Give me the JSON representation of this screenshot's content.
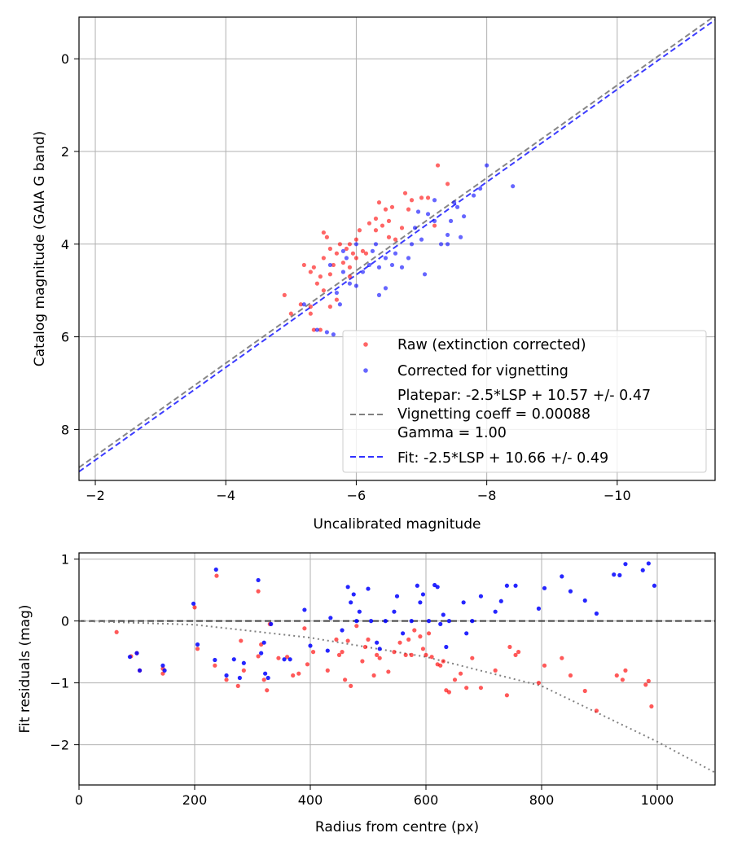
{
  "chart_data": [
    {
      "type": "scatter",
      "xlabel": "Uncalibrated magnitude",
      "ylabel": "Catalog magnitude (GAIA G band)",
      "xlim": [
        -1.75,
        -11.5
      ],
      "ylim": [
        9.1,
        -0.9
      ],
      "x_ticks": [
        -2,
        -4,
        -6,
        -8,
        -10
      ],
      "x_tick_labels": [
        "−2",
        "−4",
        "−6",
        "−8",
        "−10"
      ],
      "y_ticks": [
        0,
        2,
        4,
        6,
        8
      ],
      "y_tick_labels": [
        "0",
        "2",
        "4",
        "6",
        "8"
      ],
      "grid": true,
      "legend_position": "lower-right",
      "series": [
        {
          "name": "Raw (extinction corrected)",
          "kind": "scatter",
          "color": "#ff0000",
          "points": [
            [
              -4.9,
              5.1
            ],
            [
              -5.0,
              5.5
            ],
            [
              -5.15,
              5.3
            ],
            [
              -5.2,
              4.45
            ],
            [
              -5.3,
              5.35
            ],
            [
              -5.3,
              4.6
            ],
            [
              -5.35,
              4.5
            ],
            [
              -5.4,
              4.85
            ],
            [
              -5.35,
              5.85
            ],
            [
              -5.45,
              4.7
            ],
            [
              -5.5,
              3.75
            ],
            [
              -5.55,
              3.85
            ],
            [
              -5.5,
              4.3
            ],
            [
              -5.6,
              4.1
            ],
            [
              -5.7,
              4.2
            ],
            [
              -5.75,
              4.0
            ],
            [
              -5.8,
              4.4
            ],
            [
              -5.85,
              4.1
            ],
            [
              -5.9,
              4.0
            ],
            [
              -5.95,
              4.2
            ],
            [
              -6.0,
              3.9
            ],
            [
              -6.05,
              3.7
            ],
            [
              -6.1,
              4.15
            ],
            [
              -5.65,
              4.45
            ],
            [
              -5.9,
              4.5
            ],
            [
              -5.6,
              5.35
            ],
            [
              -5.7,
              5.2
            ],
            [
              -5.5,
              5.0
            ],
            [
              -6.2,
              3.55
            ],
            [
              -6.3,
              3.45
            ],
            [
              -6.35,
              3.1
            ],
            [
              -6.4,
              3.6
            ],
            [
              -6.45,
              3.25
            ],
            [
              -6.5,
              3.5
            ],
            [
              -6.5,
              3.85
            ],
            [
              -6.55,
              3.2
            ],
            [
              -6.6,
              3.9
            ],
            [
              -6.7,
              3.65
            ],
            [
              -6.75,
              2.9
            ],
            [
              -6.8,
              3.25
            ],
            [
              -6.85,
              3.05
            ],
            [
              -7.0,
              3.0
            ],
            [
              -7.1,
              3.0
            ],
            [
              -7.2,
              3.6
            ],
            [
              -7.25,
              2.3
            ],
            [
              -7.4,
              2.7
            ],
            [
              -6.3,
              3.7
            ],
            [
              -6.15,
              4.2
            ],
            [
              -5.9,
              4.7
            ],
            [
              -5.3,
              5.5
            ],
            [
              -5.45,
              5.85
            ],
            [
              -6.0,
              4.3
            ],
            [
              -5.6,
              4.65
            ]
          ]
        },
        {
          "name": "Corrected for vignetting",
          "kind": "scatter",
          "color": "#0000ff",
          "points": [
            [
              -5.2,
              5.3
            ],
            [
              -5.4,
              5.85
            ],
            [
              -5.55,
              5.9
            ],
            [
              -5.65,
              5.95
            ],
            [
              -5.7,
              5.05
            ],
            [
              -5.75,
              5.3
            ],
            [
              -5.8,
              4.6
            ],
            [
              -5.85,
              4.3
            ],
            [
              -5.9,
              4.85
            ],
            [
              -6.0,
              4.9
            ],
            [
              -6.1,
              4.6
            ],
            [
              -6.2,
              4.45
            ],
            [
              -6.25,
              4.15
            ],
            [
              -6.3,
              4.0
            ],
            [
              -6.35,
              4.5
            ],
            [
              -6.45,
              4.3
            ],
            [
              -6.55,
              4.45
            ],
            [
              -6.6,
              4.2
            ],
            [
              -6.7,
              4.5
            ],
            [
              -6.8,
              4.3
            ],
            [
              -6.85,
              4.0
            ],
            [
              -6.9,
              3.65
            ],
            [
              -7.0,
              3.9
            ],
            [
              -7.1,
              3.35
            ],
            [
              -7.2,
              3.5
            ],
            [
              -7.3,
              4.0
            ],
            [
              -7.4,
              3.8
            ],
            [
              -7.45,
              3.5
            ],
            [
              -7.55,
              3.2
            ],
            [
              -7.6,
              3.85
            ],
            [
              -7.65,
              3.4
            ],
            [
              -7.8,
              2.95
            ],
            [
              -7.9,
              2.8
            ],
            [
              -8.0,
              2.3
            ],
            [
              -8.4,
              2.75
            ],
            [
              -7.5,
              3.1
            ],
            [
              -7.2,
              3.05
            ],
            [
              -6.95,
              3.3
            ],
            [
              -6.45,
              4.95
            ],
            [
              -6.35,
              5.1
            ],
            [
              -5.6,
              4.45
            ],
            [
              -5.8,
              4.15
            ],
            [
              -6.0,
              4.0
            ],
            [
              -7.05,
              4.65
            ],
            [
              -7.4,
              4.0
            ]
          ]
        },
        {
          "name": "Platepar: -2.5*LSP + 10.57 +/- 0.47\nVignetting coeff = 0.00088\nGamma = 1.00",
          "kind": "line",
          "color": "#808080",
          "intercept": 10.57
        },
        {
          "name": "Fit: -2.5*LSP + 10.66 +/- 0.49",
          "kind": "line",
          "color": "#3030ff",
          "intercept": 10.66
        }
      ],
      "legend": {
        "raw": "Raw (extinction corrected)",
        "corrected": "Corrected for vignetting",
        "platepar_lines": [
          "Platepar: -2.5*LSP + 10.57 +/- 0.47",
          "Vignetting coeff = 0.00088",
          "Gamma = 1.00"
        ],
        "fit": "Fit: -2.5*LSP + 10.66 +/- 0.49"
      }
    },
    {
      "type": "scatter",
      "xlabel": "Radius from centre (px)",
      "ylabel": "Fit residuals (mag)",
      "xlim": [
        0,
        1100
      ],
      "ylim": [
        -2.65,
        1.1
      ],
      "x_ticks": [
        0,
        200,
        400,
        600,
        800,
        1000
      ],
      "x_tick_labels": [
        "0",
        "200",
        "400",
        "600",
        "800",
        "1000"
      ],
      "y_ticks": [
        1,
        0,
        -1,
        -2
      ],
      "y_tick_labels": [
        "1",
        "0",
        "−1",
        "−2"
      ],
      "grid": true,
      "zero_line": {
        "y": 0,
        "color": "#404040",
        "style": "dashed"
      },
      "vignetting_curve": {
        "color": "#808080",
        "style": "dotted",
        "points": [
          [
            0,
            0
          ],
          [
            200,
            -0.06
          ],
          [
            400,
            -0.27
          ],
          [
            600,
            -0.58
          ],
          [
            800,
            -1.05
          ],
          [
            1000,
            -1.95
          ],
          [
            1100,
            -2.45
          ]
        ]
      },
      "series": [
        {
          "name": "raw",
          "color": "#ff0000",
          "points": [
            [
              65,
              -0.18
            ],
            [
              90,
              -0.57
            ],
            [
              100,
              -0.52
            ],
            [
              105,
              -0.8
            ],
            [
              145,
              -0.77
            ],
            [
              145,
              -0.85
            ],
            [
              200,
              0.22
            ],
            [
              205,
              -0.45
            ],
            [
              238,
              0.73
            ],
            [
              235,
              -0.72
            ],
            [
              255,
              -0.95
            ],
            [
              275,
              -1.05
            ],
            [
              280,
              -0.32
            ],
            [
              285,
              -0.8
            ],
            [
              310,
              0.48
            ],
            [
              310,
              -0.57
            ],
            [
              315,
              -0.38
            ],
            [
              320,
              -0.95
            ],
            [
              325,
              -1.12
            ],
            [
              330,
              -0.05
            ],
            [
              345,
              -0.6
            ],
            [
              360,
              -0.58
            ],
            [
              370,
              -0.88
            ],
            [
              380,
              -0.85
            ],
            [
              390,
              -0.12
            ],
            [
              395,
              -0.7
            ],
            [
              405,
              -0.5
            ],
            [
              430,
              -0.8
            ],
            [
              445,
              -0.3
            ],
            [
              450,
              -0.55
            ],
            [
              455,
              -0.5
            ],
            [
              460,
              -0.95
            ],
            [
              465,
              -0.32
            ],
            [
              470,
              -1.05
            ],
            [
              480,
              -0.08
            ],
            [
              490,
              -0.65
            ],
            [
              495,
              -0.42
            ],
            [
              500,
              -0.3
            ],
            [
              510,
              -0.88
            ],
            [
              515,
              -0.55
            ],
            [
              520,
              -0.6
            ],
            [
              535,
              -0.82
            ],
            [
              545,
              -0.5
            ],
            [
              555,
              -0.35
            ],
            [
              565,
              -0.55
            ],
            [
              570,
              -0.3
            ],
            [
              575,
              -0.55
            ],
            [
              580,
              -0.15
            ],
            [
              590,
              -0.25
            ],
            [
              595,
              -0.45
            ],
            [
              600,
              -0.55
            ],
            [
              605,
              -0.2
            ],
            [
              610,
              -0.58
            ],
            [
              620,
              -0.7
            ],
            [
              625,
              -0.72
            ],
            [
              630,
              -0.65
            ],
            [
              635,
              -1.12
            ],
            [
              640,
              -1.15
            ],
            [
              650,
              -0.95
            ],
            [
              660,
              -0.85
            ],
            [
              670,
              -1.08
            ],
            [
              680,
              -0.6
            ],
            [
              695,
              -1.08
            ],
            [
              720,
              -0.8
            ],
            [
              740,
              -1.2
            ],
            [
              745,
              -0.42
            ],
            [
              755,
              -0.55
            ],
            [
              760,
              -0.5
            ],
            [
              795,
              -1.0
            ],
            [
              805,
              -0.72
            ],
            [
              835,
              -0.6
            ],
            [
              850,
              -0.88
            ],
            [
              875,
              -1.13
            ],
            [
              895,
              -1.45
            ],
            [
              930,
              -0.88
            ],
            [
              940,
              -0.95
            ],
            [
              945,
              -0.8
            ],
            [
              980,
              -1.03
            ],
            [
              985,
              -0.97
            ],
            [
              990,
              -1.38
            ]
          ]
        },
        {
          "name": "corrected",
          "color": "#0000ff",
          "points": [
            [
              88,
              -0.58
            ],
            [
              100,
              -0.52
            ],
            [
              105,
              -0.8
            ],
            [
              145,
              -0.72
            ],
            [
              148,
              -0.8
            ],
            [
              198,
              0.28
            ],
            [
              205,
              -0.38
            ],
            [
              237,
              0.83
            ],
            [
              235,
              -0.63
            ],
            [
              255,
              -0.88
            ],
            [
              268,
              -0.62
            ],
            [
              278,
              -0.92
            ],
            [
              285,
              -0.68
            ],
            [
              310,
              0.66
            ],
            [
              315,
              -0.52
            ],
            [
              320,
              -0.35
            ],
            [
              322,
              -0.85
            ],
            [
              327,
              -0.92
            ],
            [
              332,
              -0.05
            ],
            [
              355,
              -0.62
            ],
            [
              365,
              -0.62
            ],
            [
              390,
              0.18
            ],
            [
              400,
              -0.4
            ],
            [
              430,
              -0.48
            ],
            [
              435,
              0.05
            ],
            [
              455,
              -0.15
            ],
            [
              465,
              0.55
            ],
            [
              470,
              0.3
            ],
            [
              475,
              0.43
            ],
            [
              480,
              0.0
            ],
            [
              485,
              0.15
            ],
            [
              500,
              0.52
            ],
            [
              505,
              0.0
            ],
            [
              515,
              -0.35
            ],
            [
              520,
              -0.45
            ],
            [
              530,
              0.0
            ],
            [
              545,
              0.15
            ],
            [
              550,
              0.4
            ],
            [
              560,
              -0.2
            ],
            [
              575,
              0.0
            ],
            [
              585,
              0.57
            ],
            [
              590,
              0.3
            ],
            [
              595,
              0.43
            ],
            [
              605,
              0.0
            ],
            [
              615,
              0.58
            ],
            [
              620,
              0.55
            ],
            [
              625,
              -0.05
            ],
            [
              630,
              0.1
            ],
            [
              635,
              -0.42
            ],
            [
              640,
              0.0
            ],
            [
              665,
              0.3
            ],
            [
              670,
              -0.2
            ],
            [
              680,
              0.0
            ],
            [
              695,
              0.4
            ],
            [
              720,
              0.15
            ],
            [
              730,
              0.32
            ],
            [
              740,
              0.57
            ],
            [
              755,
              0.57
            ],
            [
              795,
              0.2
            ],
            [
              805,
              0.53
            ],
            [
              835,
              0.72
            ],
            [
              850,
              0.48
            ],
            [
              875,
              0.33
            ],
            [
              895,
              0.12
            ],
            [
              925,
              0.75
            ],
            [
              935,
              0.74
            ],
            [
              945,
              0.92
            ],
            [
              975,
              0.82
            ],
            [
              985,
              0.93
            ],
            [
              995,
              0.57
            ]
          ]
        }
      ]
    }
  ]
}
